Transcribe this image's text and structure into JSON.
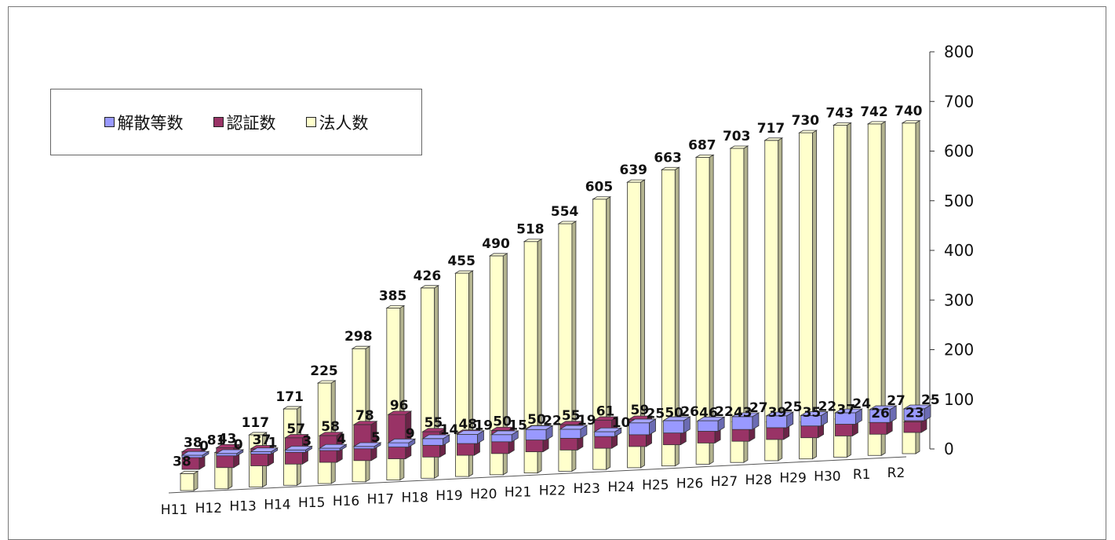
{
  "chart_data": {
    "type": "bar",
    "categories": [
      "H11",
      "H12",
      "H13",
      "H14",
      "H15",
      "H16",
      "H17",
      "H18",
      "H19",
      "H20",
      "H21",
      "H22",
      "H23",
      "H24",
      "H25",
      "H26",
      "H27",
      "H28",
      "H29",
      "H30",
      "R1",
      "R2"
    ],
    "series": [
      {
        "name": "解散等数",
        "color": "#9999ff",
        "values": [
          0,
          0,
          1,
          3,
          4,
          5,
          9,
          14,
          19,
          15,
          22,
          19,
          10,
          25,
          26,
          22,
          27,
          25,
          22,
          24,
          27,
          25
        ]
      },
      {
        "name": "認証数",
        "color": "#993366",
        "values": [
          38,
          43,
          37,
          57,
          58,
          78,
          96,
          55,
          48,
          50,
          50,
          55,
          61,
          59,
          50,
          46,
          43,
          39,
          35,
          37,
          26,
          23
        ]
      },
      {
        "name": "法人数",
        "color": "#ffffcc",
        "values": [
          38,
          81,
          117,
          171,
          225,
          298,
          385,
          426,
          455,
          490,
          518,
          554,
          605,
          639,
          663,
          687,
          703,
          717,
          730,
          743,
          742,
          740
        ]
      }
    ],
    "yticks": [
      "0",
      "100",
      "200",
      "300",
      "400",
      "500",
      "600",
      "700",
      "800"
    ],
    "ylim": [
      0,
      800
    ],
    "legend_position": "top-left",
    "grid": false
  }
}
